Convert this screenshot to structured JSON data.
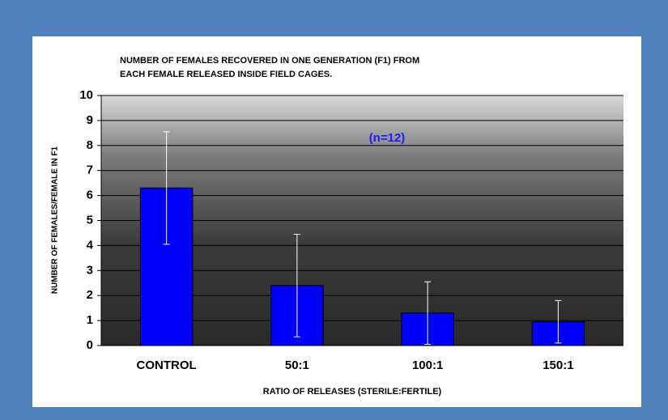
{
  "chart_data": {
    "type": "bar",
    "title": "NUMBER OF FEMALES RECOVERED IN ONE GENERATION (F1) FROM EACH FEMALE RELEASED INSIDE FIELD CAGES.",
    "annotation": "(n=12)",
    "x_label": "RATIO OF RELEASES (STERILE:FERTILE)",
    "y_label": "NUMBER OF FEMALES/FEMALE IN F1",
    "categories": [
      "CONTROL",
      "50:1",
      "100:1",
      "150:1"
    ],
    "values": [
      6.3,
      2.4,
      1.3,
      0.95
    ],
    "errors": [
      2.25,
      2.05,
      1.25,
      0.85
    ],
    "color": "#0000ff",
    "ylim": [
      0,
      10
    ],
    "yticks": [
      0,
      1,
      2,
      3,
      4,
      5,
      6,
      7,
      8,
      9,
      10
    ],
    "grid": true
  }
}
